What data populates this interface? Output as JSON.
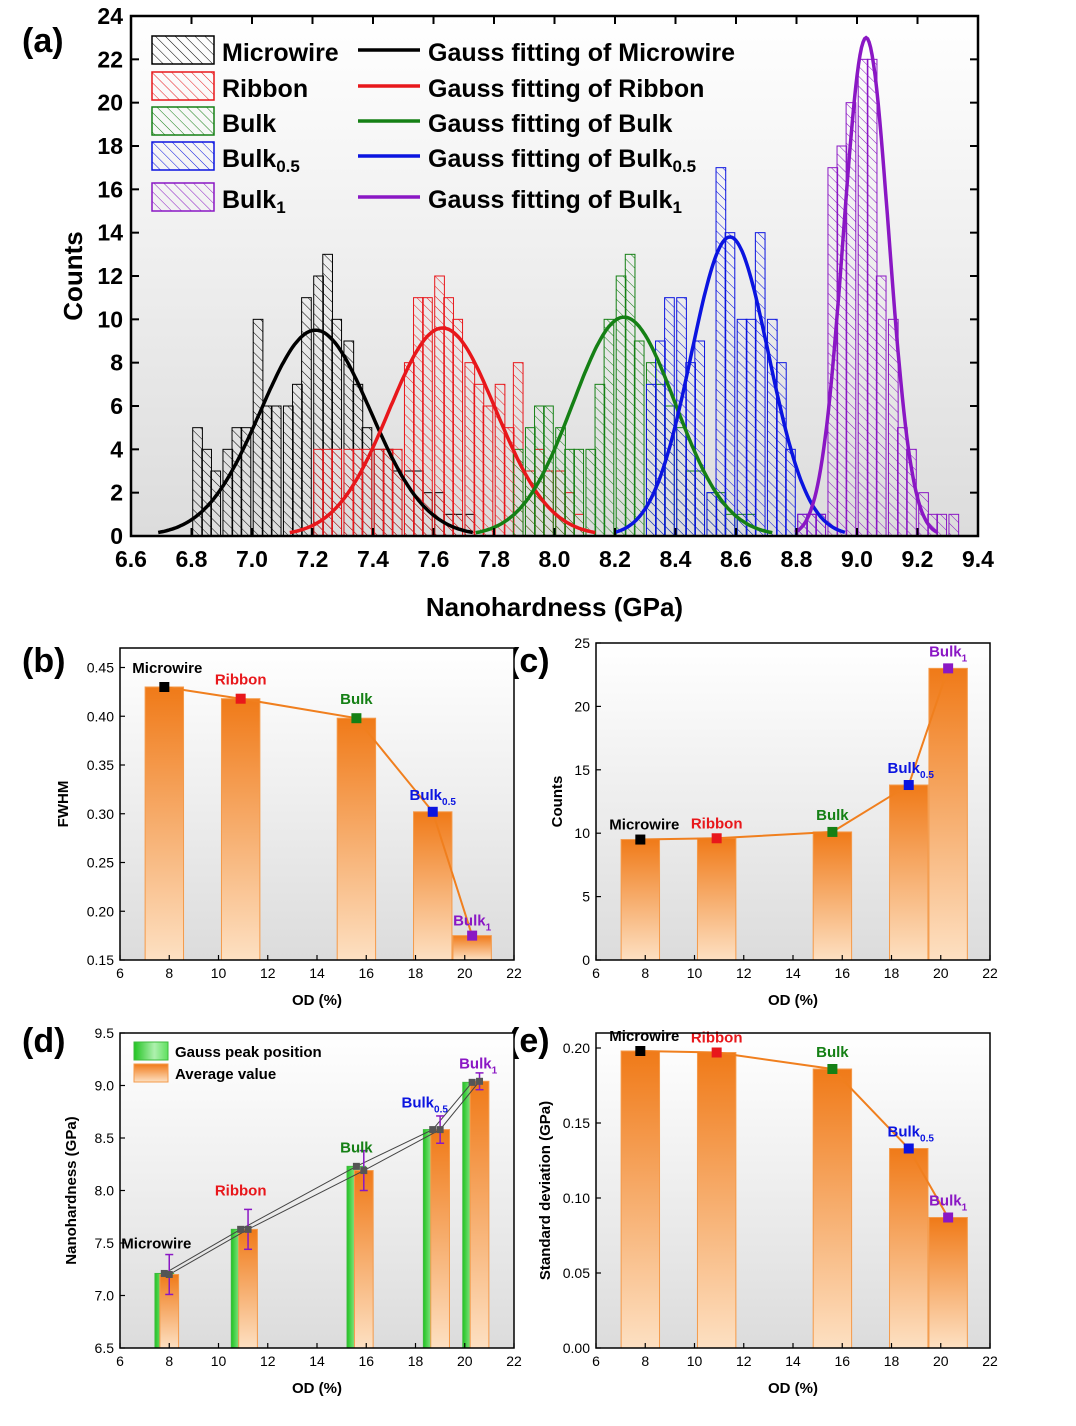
{
  "colors": {
    "microwire": "#000000",
    "ribbon": "#e8171b",
    "bulk": "#158015",
    "bulk05": "#0b14e0",
    "bulk1": "#8a17c4",
    "orange": "#f07f1e",
    "green": "#2bd12b"
  },
  "panel_labels": [
    "(a)",
    "(b)",
    "(c)",
    "(d)",
    "(e)"
  ],
  "chart_data": [
    {
      "type": "bar",
      "panel": "(a)",
      "xlabel": "Nanohardness (GPa)",
      "ylabel": "Counts",
      "xlim": [
        6.6,
        9.4
      ],
      "ylim": [
        0,
        24
      ],
      "xticks": [
        "6.6",
        "6.8",
        "7.0",
        "7.2",
        "7.4",
        "7.6",
        "7.8",
        "8.0",
        "8.2",
        "8.4",
        "8.6",
        "8.8",
        "9.0",
        "9.2",
        "9.4"
      ],
      "yticks": [
        "0",
        "2",
        "4",
        "6",
        "8",
        "10",
        "12",
        "14",
        "16",
        "18",
        "20",
        "22",
        "24"
      ],
      "bin_width": 0.032,
      "legend_placement": "top",
      "legend": {
        "hist": [
          {
            "label": "Microwire",
            "sub": ""
          },
          {
            "label": "Ribbon",
            "sub": ""
          },
          {
            "label": "Bulk",
            "sub": ""
          },
          {
            "label": "Bulk",
            "sub": "0.5"
          },
          {
            "label": "Bulk",
            "sub": "1"
          }
        ],
        "fits": [
          {
            "label": "Gauss fitting of Microwire",
            "sub": ""
          },
          {
            "label": "Gauss fitting of Ribbon",
            "sub": ""
          },
          {
            "label": "Gauss fitting of Bulk",
            "sub": ""
          },
          {
            "label": "Gauss fitting of Bulk",
            "sub": "0.5"
          },
          {
            "label": "Gauss fitting of Bulk",
            "sub": "1"
          }
        ]
      },
      "histograms": [
        {
          "key": "microwire",
          "x": [
            6.82,
            6.85,
            6.88,
            6.92,
            6.95,
            6.98,
            7.02,
            7.05,
            7.08,
            7.12,
            7.15,
            7.18,
            7.22,
            7.25,
            7.28,
            7.32,
            7.35,
            7.38,
            7.42,
            7.45,
            7.48,
            7.52,
            7.55,
            7.58,
            7.62,
            7.65,
            7.68,
            7.72
          ],
          "counts": [
            5,
            4,
            3,
            4,
            5,
            5,
            10,
            6,
            6,
            6,
            7,
            11,
            12,
            13,
            10,
            9,
            7,
            5,
            4,
            4,
            3,
            3,
            3,
            2,
            2,
            1,
            1,
            1
          ]
        },
        {
          "key": "ribbon",
          "x": [
            7.22,
            7.25,
            7.28,
            7.32,
            7.35,
            7.38,
            7.42,
            7.45,
            7.48,
            7.52,
            7.55,
            7.58,
            7.62,
            7.65,
            7.68,
            7.72,
            7.75,
            7.78,
            7.82,
            7.85,
            7.88,
            7.92,
            7.95,
            7.98,
            8.02,
            8.05,
            8.08
          ],
          "counts": [
            4,
            4,
            4,
            4,
            4,
            4,
            4,
            4,
            4,
            8,
            11,
            11,
            12,
            11,
            10,
            8,
            7,
            6,
            7,
            5,
            8,
            3,
            4,
            3,
            3,
            2,
            1
          ]
        },
        {
          "key": "bulk",
          "x": [
            7.88,
            7.92,
            7.95,
            7.98,
            8.02,
            8.05,
            8.08,
            8.12,
            8.15,
            8.18,
            8.22,
            8.25,
            8.28,
            8.32,
            8.35,
            8.38,
            8.42,
            8.45,
            8.48,
            8.52,
            8.55,
            8.58,
            8.62,
            8.65
          ],
          "counts": [
            4,
            5,
            6,
            6,
            5,
            4,
            4,
            4,
            7,
            10,
            12,
            13,
            9,
            8,
            7,
            6,
            5,
            3,
            3,
            2,
            2,
            1,
            1,
            1
          ]
        },
        {
          "key": "bulk05",
          "x": [
            8.32,
            8.35,
            8.38,
            8.42,
            8.45,
            8.48,
            8.52,
            8.55,
            8.58,
            8.62,
            8.65,
            8.68,
            8.72,
            8.75,
            8.78,
            8.82,
            8.85,
            8.88
          ],
          "counts": [
            7,
            9,
            11,
            11,
            8,
            9,
            2,
            17,
            14,
            10,
            10,
            14,
            10,
            8,
            4,
            1,
            1,
            1
          ]
        },
        {
          "key": "bulk1",
          "x": [
            8.82,
            8.85,
            8.88,
            8.92,
            8.95,
            8.98,
            9.02,
            9.05,
            9.08,
            9.12,
            9.15,
            9.18,
            9.22,
            9.25,
            9.28,
            9.32
          ],
          "counts": [
            1,
            1,
            1,
            17,
            18,
            20,
            22,
            22,
            12,
            10,
            5,
            4,
            2,
            1,
            1,
            1
          ]
        }
      ],
      "gauss_fits": [
        {
          "key": "microwire",
          "center": 7.21,
          "amplitude": 9.5,
          "sigma": 0.182
        },
        {
          "key": "ribbon",
          "center": 7.63,
          "amplitude": 9.6,
          "sigma": 0.176
        },
        {
          "key": "bulk",
          "center": 8.23,
          "amplitude": 10.1,
          "sigma": 0.169
        },
        {
          "key": "bulk05",
          "center": 8.58,
          "amplitude": 13.8,
          "sigma": 0.128
        },
        {
          "key": "bulk1",
          "center": 9.03,
          "amplitude": 23.0,
          "sigma": 0.075
        }
      ]
    },
    {
      "type": "bar",
      "panel": "(b)",
      "xlabel": "OD (%)",
      "ylabel": "FWHM",
      "xlim": [
        6,
        22
      ],
      "ylim": [
        0.15,
        0.47
      ],
      "xticks": [
        "6",
        "8",
        "10",
        "12",
        "14",
        "16",
        "18",
        "20",
        "22"
      ],
      "yticks": [
        "0.15",
        "0.20",
        "0.25",
        "0.30",
        "0.35",
        "0.40",
        "0.45"
      ],
      "points": [
        {
          "x": 7.8,
          "y": 0.43,
          "label": "Microwire",
          "sub": "",
          "key": "microwire"
        },
        {
          "x": 10.9,
          "y": 0.418,
          "label": "Ribbon",
          "sub": "",
          "key": "ribbon"
        },
        {
          "x": 15.6,
          "y": 0.398,
          "label": "Bulk",
          "sub": "",
          "key": "bulk"
        },
        {
          "x": 18.7,
          "y": 0.302,
          "label": "Bulk",
          "sub": "0.5",
          "key": "bulk05"
        },
        {
          "x": 20.3,
          "y": 0.175,
          "label": "Bulk",
          "sub": "1",
          "key": "bulk1"
        }
      ]
    },
    {
      "type": "bar",
      "panel": "(c)",
      "xlabel": "OD (%)",
      "ylabel": "Counts",
      "xlim": [
        6,
        22
      ],
      "ylim": [
        0,
        25
      ],
      "xticks": [
        "6",
        "8",
        "10",
        "12",
        "14",
        "16",
        "18",
        "20",
        "22"
      ],
      "yticks": [
        "0",
        "5",
        "10",
        "15",
        "20",
        "25"
      ],
      "points": [
        {
          "x": 7.8,
          "y": 9.5,
          "label": "Microwire",
          "sub": "",
          "key": "microwire"
        },
        {
          "x": 10.9,
          "y": 9.6,
          "label": "Ribbon",
          "sub": "",
          "key": "ribbon"
        },
        {
          "x": 15.6,
          "y": 10.1,
          "label": "Bulk",
          "sub": "",
          "key": "bulk"
        },
        {
          "x": 18.7,
          "y": 13.8,
          "label": "Bulk",
          "sub": "0.5",
          "key": "bulk05"
        },
        {
          "x": 20.3,
          "y": 23.0,
          "label": "Bulk",
          "sub": "1",
          "key": "bulk1"
        }
      ]
    },
    {
      "type": "bar",
      "panel": "(d)",
      "xlabel": "OD (%)",
      "ylabel": "Nanohardness (GPa)",
      "xlim": [
        6,
        22
      ],
      "ylim": [
        6.5,
        9.5
      ],
      "xticks": [
        "6",
        "8",
        "10",
        "12",
        "14",
        "16",
        "18",
        "20",
        "22"
      ],
      "yticks": [
        "6.5",
        "7.0",
        "7.5",
        "8.0",
        "8.5",
        "9.0",
        "9.5"
      ],
      "legend_placement": "top-left",
      "legend": [
        "Gauss peak position",
        "Average value"
      ],
      "series": [
        {
          "name": "Gauss peak position",
          "values": [
            7.21,
            7.63,
            8.23,
            8.58,
            9.03
          ],
          "x": [
            7.8,
            10.9,
            15.6,
            18.7,
            20.3
          ]
        },
        {
          "name": "Average value",
          "values": [
            7.2,
            7.63,
            8.19,
            8.58,
            9.04
          ],
          "x": [
            8.0,
            11.2,
            15.9,
            19.0,
            20.6
          ],
          "error": [
            0.19,
            0.19,
            0.19,
            0.13,
            0.08
          ]
        }
      ],
      "labels": [
        {
          "text": "Microwire",
          "sub": "",
          "key": "microwire",
          "x": 7.8,
          "y": 7.2
        },
        {
          "text": "Ribbon",
          "sub": "",
          "key": "ribbon",
          "x": 10.9,
          "y": 7.63
        },
        {
          "text": "Bulk",
          "sub": "",
          "key": "bulk",
          "x": 15.6,
          "y": 8.23
        },
        {
          "text": "Bulk",
          "sub": "0.5",
          "key": "bulk05",
          "x": 18.7,
          "y": 8.58
        },
        {
          "text": "Bulk",
          "sub": "1",
          "key": "bulk1",
          "x": 20.3,
          "y": 9.03
        }
      ]
    },
    {
      "type": "bar",
      "panel": "(e)",
      "xlabel": "OD (%)",
      "ylabel": "Standard deviation (GPa)",
      "xlim": [
        6,
        22
      ],
      "ylim": [
        0,
        0.21
      ],
      "xticks": [
        "6",
        "8",
        "10",
        "12",
        "14",
        "16",
        "18",
        "20",
        "22"
      ],
      "yticks": [
        "0.00",
        "0.05",
        "0.10",
        "0.15",
        "0.20"
      ],
      "points": [
        {
          "x": 7.8,
          "y": 0.198,
          "label": "Microwire",
          "sub": "",
          "key": "microwire"
        },
        {
          "x": 10.9,
          "y": 0.197,
          "label": "Ribbon",
          "sub": "",
          "key": "ribbon"
        },
        {
          "x": 15.6,
          "y": 0.186,
          "label": "Bulk",
          "sub": "",
          "key": "bulk"
        },
        {
          "x": 18.7,
          "y": 0.133,
          "label": "Bulk",
          "sub": "0.5",
          "key": "bulk05"
        },
        {
          "x": 20.3,
          "y": 0.087,
          "label": "Bulk",
          "sub": "1",
          "key": "bulk1"
        }
      ]
    }
  ]
}
